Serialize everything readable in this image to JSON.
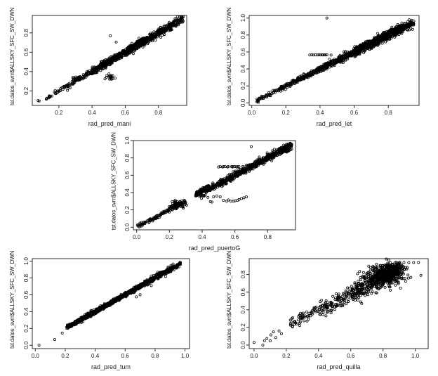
{
  "figure": {
    "background": "#ffffff",
    "frame_color": "#2a2a2a",
    "point_color": "#000000",
    "tick_label_color": "#1b1b1b",
    "shared_ylabel": "tst.datos_svm$ALLSKY_SFC_SW_DWN"
  },
  "chart_data": [
    {
      "id": "mani",
      "type": "scatter",
      "title": "",
      "xlabel": "rad_pred_mani",
      "ylabel": "tst.datos_svm$ALLSKY_SFC_SW_DWN",
      "xlim": [
        0.04,
        0.97
      ],
      "ylim": [
        0.05,
        0.98
      ],
      "xticks": [
        0.2,
        0.4,
        0.6,
        0.8
      ],
      "yticks": [
        0.2,
        0.4,
        0.6,
        0.8
      ],
      "grid": false,
      "legend": null,
      "marker": "open-circle",
      "pattern_note": "tight 1:1 diagonal 0.1-0.95; clump at (0.31,0.33); low outlier clump near (0.51,0.34); stray points at (0.51,0.77) and (0.55,0.70)",
      "seed": 11,
      "bands": [
        {
          "n": 10,
          "x": [
            0.12,
            0.17
          ],
          "noise": 0.01
        },
        {
          "n": 45,
          "x": [
            0.17,
            0.3
          ],
          "noise": 0.012
        },
        {
          "n": 40,
          "x": [
            0.32,
            0.4
          ],
          "noise": 0.013
        },
        {
          "n": 520,
          "x": [
            0.4,
            0.72
          ],
          "noise": 0.018
        },
        {
          "n": 380,
          "x": [
            0.6,
            0.88
          ],
          "noise": 0.02
        },
        {
          "n": 75,
          "x": [
            0.86,
            0.95
          ],
          "noise": 0.023
        }
      ],
      "clusters": [
        {
          "n": 40,
          "cx": 0.31,
          "cy": 0.325,
          "sx": 0.013,
          "sy": 0.013
        },
        {
          "n": 10,
          "cx": 0.5,
          "cy": 0.345,
          "sx": 0.012,
          "sy": 0.018
        },
        {
          "n": 8,
          "cx": 0.515,
          "cy": 0.33,
          "sx": 0.01,
          "sy": 0.015
        }
      ],
      "outliers": [
        [
          0.075,
          0.1
        ],
        [
          0.082,
          0.095
        ],
        [
          0.51,
          0.77
        ],
        [
          0.545,
          0.705
        ],
        [
          0.455,
          0.47
        ],
        [
          0.44,
          0.455
        ]
      ]
    },
    {
      "id": "let",
      "type": "scatter",
      "title": "",
      "xlabel": "rad_pred_let",
      "ylabel": "tst.datos_svm$ALLSKY_SFC_SW_DWN",
      "xlim": [
        -0.015,
        0.98
      ],
      "ylim": [
        -0.03,
        1.03
      ],
      "xticks": [
        0.0,
        0.2,
        0.4,
        0.6,
        0.8
      ],
      "yticks": [
        0.0,
        0.2,
        0.4,
        0.6,
        0.8,
        1.0
      ],
      "grid": false,
      "legend": null,
      "marker": "open-circle",
      "pattern_note": "1:1 diagonal 0.03-0.95, widest around 0.6-0.85; horizontal run of circles at y=0.565 for x 0.34-0.47; single outlier at (0.44,1.0)",
      "seed": 22,
      "bands": [
        {
          "n": 30,
          "x": [
            0.03,
            0.1
          ],
          "noise": 0.01
        },
        {
          "n": 60,
          "x": [
            0.1,
            0.22
          ],
          "noise": 0.012
        },
        {
          "n": 210,
          "x": [
            0.22,
            0.42
          ],
          "noise": 0.014
        },
        {
          "n": 270,
          "x": [
            0.42,
            0.6
          ],
          "noise": 0.018
        },
        {
          "n": 700,
          "x": [
            0.6,
            0.88
          ],
          "noise": 0.026
        },
        {
          "n": 95,
          "x": [
            0.86,
            0.95
          ],
          "noise": 0.024
        }
      ],
      "clusters": [],
      "outliers": [
        [
          0.34,
          0.565
        ],
        [
          0.352,
          0.567
        ],
        [
          0.362,
          0.564
        ],
        [
          0.372,
          0.566
        ],
        [
          0.384,
          0.565
        ],
        [
          0.394,
          0.567
        ],
        [
          0.402,
          0.565
        ],
        [
          0.412,
          0.566
        ],
        [
          0.418,
          0.564
        ],
        [
          0.425,
          0.566
        ],
        [
          0.432,
          0.565
        ],
        [
          0.44,
          0.567
        ],
        [
          0.465,
          0.563
        ],
        [
          0.44,
          1.0
        ]
      ]
    },
    {
      "id": "puertoG",
      "type": "scatter",
      "title": "",
      "xlabel": "rad_pred_puertoG",
      "ylabel": "tst.datos_svm$ALLSKY_SFC_SW_DWN",
      "xlim": [
        -0.02,
        0.97
      ],
      "ylim": [
        -0.03,
        1.0
      ],
      "xticks": [
        0.0,
        0.2,
        0.4,
        0.6,
        0.8
      ],
      "yticks": [
        0.0,
        0.2,
        0.4,
        0.6,
        0.8,
        1.0
      ],
      "grid": false,
      "legend": null,
      "marker": "open-circle",
      "pattern_note": "diagonal 0-0.3 with clump at (0.25,0.26); gap 0.30-0.36; dense diagonal 0.36-0.95; horizontal run at y=0.70 for x 0.50-0.63; low outlier band y 0.29-0.36 for x 0.43-0.67; stray at (0.70,0.93)",
      "seed": 33,
      "bands": [
        {
          "n": 85,
          "x": [
            0.005,
            0.2
          ],
          "noise": 0.011
        },
        {
          "n": 55,
          "x": [
            0.2,
            0.3
          ],
          "noise": 0.014
        },
        {
          "n": 130,
          "x": [
            0.36,
            0.44
          ],
          "noise": 0.014,
          "intercept": 0.02
        },
        {
          "n": 660,
          "x": [
            0.42,
            0.93
          ],
          "noise": 0.019,
          "bias": 1.25
        },
        {
          "n": 60,
          "x": [
            0.9,
            0.95
          ],
          "noise": 0.02
        }
      ],
      "clusters": [
        {
          "n": 80,
          "cx": 0.25,
          "cy": 0.255,
          "sx": 0.02,
          "sy": 0.02
        },
        {
          "n": 12,
          "cx": 0.4,
          "cy": 0.345,
          "sx": 0.012,
          "sy": 0.02
        }
      ],
      "outliers": [
        [
          0.5,
          0.695
        ],
        [
          0.51,
          0.7
        ],
        [
          0.525,
          0.695
        ],
        [
          0.53,
          0.7
        ],
        [
          0.54,
          0.7
        ],
        [
          0.555,
          0.695
        ],
        [
          0.56,
          0.7
        ],
        [
          0.58,
          0.7
        ],
        [
          0.585,
          0.695
        ],
        [
          0.59,
          0.7
        ],
        [
          0.6,
          0.7
        ],
        [
          0.61,
          0.695
        ],
        [
          0.615,
          0.7
        ],
        [
          0.625,
          0.7
        ],
        [
          0.435,
          0.345
        ],
        [
          0.45,
          0.295
        ],
        [
          0.46,
          0.29
        ],
        [
          0.47,
          0.35
        ],
        [
          0.49,
          0.36
        ],
        [
          0.51,
          0.35
        ],
        [
          0.53,
          0.31
        ],
        [
          0.55,
          0.3
        ],
        [
          0.56,
          0.315
        ],
        [
          0.575,
          0.3
        ],
        [
          0.59,
          0.3
        ],
        [
          0.6,
          0.305
        ],
        [
          0.615,
          0.31
        ],
        [
          0.625,
          0.32
        ],
        [
          0.64,
          0.33
        ],
        [
          0.655,
          0.34
        ],
        [
          0.67,
          0.35
        ],
        [
          0.7,
          0.93
        ],
        [
          0.005,
          0.025
        ]
      ]
    },
    {
      "id": "tum",
      "type": "scatter",
      "title": "",
      "xlabel": "rad_pred_tum",
      "ylabel": "tst.datos_svm$ALLSKY_SFC_SW_DWN",
      "xlim": [
        -0.02,
        1.03
      ],
      "ylim": [
        -0.04,
        1.03
      ],
      "xticks": [
        0.0,
        0.2,
        0.4,
        0.6,
        0.8,
        1.0
      ],
      "yticks": [
        0.0,
        0.2,
        0.4,
        0.6,
        0.8,
        1.0
      ],
      "grid": false,
      "legend": null,
      "marker": "open-circle",
      "pattern_note": "very tight 1:1 diagonal 0.2-0.97; isolated low points at (0.025,0.0),(0.13,0.07),(0.18,0.145); lone stray near (0.67,0.58)",
      "seed": 44,
      "bands": [
        {
          "n": 150,
          "x": [
            0.21,
            0.3
          ],
          "noise": 0.01
        },
        {
          "n": 800,
          "x": [
            0.3,
            0.75
          ],
          "noise": 0.012
        },
        {
          "n": 230,
          "x": [
            0.72,
            0.9
          ],
          "noise": 0.017
        },
        {
          "n": 75,
          "x": [
            0.88,
            0.97
          ],
          "noise": 0.02
        }
      ],
      "clusters": [],
      "outliers": [
        [
          0.025,
          0.0
        ],
        [
          0.13,
          0.068
        ],
        [
          0.18,
          0.145
        ],
        [
          0.675,
          0.575
        ],
        [
          0.7,
          0.6
        ]
      ]
    },
    {
      "id": "quilla",
      "type": "scatter",
      "title": "",
      "xlabel": "rad_pred_quilla",
      "ylabel": "tst.datos_svm$ALLSKY_SFC_SW_DWN",
      "xlim": [
        -0.03,
        1.08
      ],
      "ylim": [
        -0.04,
        0.98
      ],
      "xticks": [
        0.0,
        0.2,
        0.4,
        0.6,
        0.8,
        1.0
      ],
      "yticks": [
        0.0,
        0.2,
        0.4,
        0.6,
        0.8
      ],
      "grid": false,
      "legend": null,
      "marker": "open-circle",
      "pattern_note": "loose noisy diagonal; sparse points x<0.2 near y 0-0.17; dense blob around (0.8,0.8); row of circles at y=0.93 for x 0.90-1.03; stray at (1.03,0.79)",
      "seed": 55,
      "bands": [
        {
          "n": 60,
          "x": [
            0.22,
            0.4
          ],
          "slope": 0.9,
          "intercept": 0.04,
          "noise": 0.03
        },
        {
          "n": 130,
          "x": [
            0.4,
            0.62
          ],
          "slope": 0.9,
          "intercept": 0.03,
          "noise": 0.045
        },
        {
          "n": 420,
          "x": [
            0.6,
            0.9
          ],
          "slope": 0.85,
          "intercept": 0.08,
          "noise": 0.055,
          "bias": 1.3
        }
      ],
      "clusters": [
        {
          "n": 320,
          "cx": 0.81,
          "cy": 0.8,
          "sx": 0.055,
          "sy": 0.055
        },
        {
          "n": 80,
          "cx": 0.86,
          "cy": 0.88,
          "sx": 0.04,
          "sy": 0.03
        }
      ],
      "outliers": [
        [
          0.0,
          0.03
        ],
        [
          0.055,
          0.0
        ],
        [
          0.065,
          0.05
        ],
        [
          0.08,
          0.075
        ],
        [
          0.1,
          0.05
        ],
        [
          0.105,
          0.115
        ],
        [
          0.12,
          0.15
        ],
        [
          0.135,
          0.085
        ],
        [
          0.155,
          0.16
        ],
        [
          0.17,
          0.13
        ],
        [
          0.9,
          0.93
        ],
        [
          0.93,
          0.935
        ],
        [
          0.96,
          0.935
        ],
        [
          0.99,
          0.935
        ],
        [
          1.02,
          0.935
        ],
        [
          1.035,
          0.79
        ],
        [
          0.95,
          0.88
        ]
      ]
    }
  ]
}
